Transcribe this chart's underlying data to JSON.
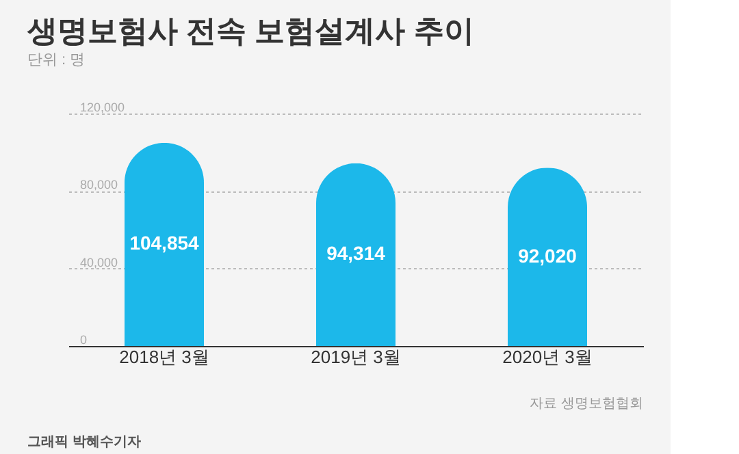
{
  "chart_data": {
    "type": "bar",
    "title": "생명보험사 전속 보험설계사 추이",
    "subtitle": "단위 : 명",
    "categories": [
      "2018년 3월",
      "2019년 3월",
      "2020년 3월"
    ],
    "values": [
      104854,
      94314,
      92020
    ],
    "color": "#1cb8ea",
    "data_labels": true,
    "value_labels": [
      "104,854",
      "94,314",
      "92,020"
    ],
    "ylim": [
      0,
      120000
    ],
    "yticks": [
      0,
      {
        "value": 40000,
        "label": "40,000"
      },
      {
        "value": 80000,
        "label": "80,000"
      },
      {
        "value": 120000,
        "label": "120,000"
      }
    ],
    "grid": "y",
    "annotations": [
      "자료 생명보험협회",
      "그래픽 박혜수기자"
    ]
  }
}
